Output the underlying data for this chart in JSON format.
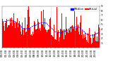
{
  "n_points": 1440,
  "ylim": [
    0,
    9
  ],
  "yticks": [
    1,
    2,
    3,
    4,
    5,
    6,
    7,
    8,
    9
  ],
  "bar_color": "#ff0000",
  "median_color": "#0000ff",
  "median_linewidth": 0.5,
  "bar_width": 1.0,
  "background_color": "#ffffff",
  "grid_color": "#999999",
  "vline_positions": [
    360,
    720,
    1080
  ],
  "legend_actual_color": "#ff0000",
  "legend_median_color": "#0000ff",
  "legend_actual_label": "Actual",
  "legend_median_label": "Median",
  "xlabel_fontsize": 2.8,
  "ylabel_fontsize": 3.0,
  "title_fontsize": 3.2,
  "figwidth": 1.6,
  "figheight": 0.87,
  "dpi": 100
}
